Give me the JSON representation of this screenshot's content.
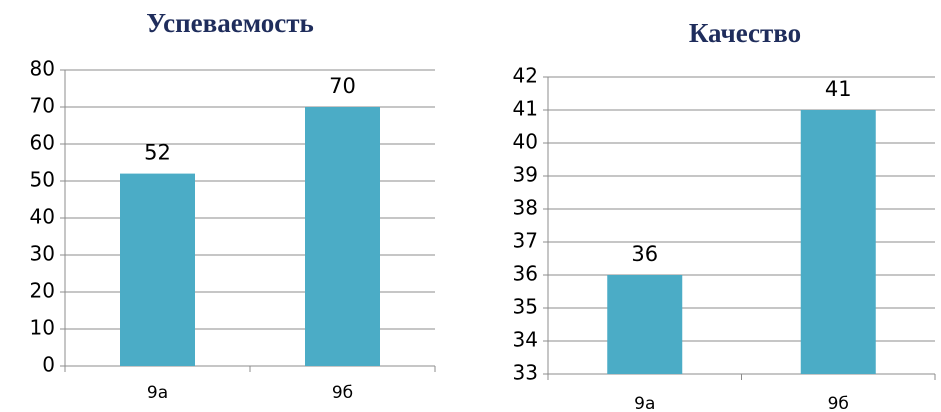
{
  "chart_data": [
    {
      "type": "bar",
      "title": "Успеваемость",
      "categories": [
        "9а",
        "9б"
      ],
      "values": [
        52,
        70
      ],
      "color": "#4bacc6",
      "ylim": [
        0,
        80
      ],
      "yticks": [
        0,
        10,
        20,
        30,
        40,
        50,
        60,
        70,
        80
      ],
      "grid": true
    },
    {
      "type": "bar",
      "title": "Качество",
      "categories": [
        "9а",
        "9б"
      ],
      "values": [
        36,
        41
      ],
      "color": "#4bacc6",
      "ylim": [
        33,
        42
      ],
      "yticks": [
        33,
        34,
        35,
        36,
        37,
        38,
        39,
        40,
        41,
        42
      ],
      "grid": true
    }
  ]
}
